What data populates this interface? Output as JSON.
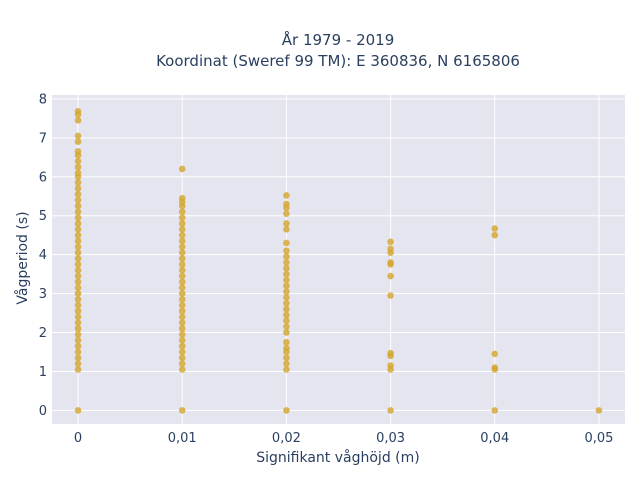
{
  "chart_data": {
    "type": "scatter",
    "title_lines": [
      "År 1979 - 2019",
      "Koordinat (Sweref 99 TM): E 360836, N 6165806"
    ],
    "xlabel": "Signifikant våghöjd (m)",
    "ylabel": "Vågperiod (s)",
    "xlim": [
      -0.0025,
      0.0525
    ],
    "ylim": [
      -0.35,
      8.1
    ],
    "x_ticks": [
      0,
      0.01,
      0.02,
      0.03,
      0.04,
      0.05
    ],
    "x_tick_labels": [
      "0",
      "0,01",
      "0,02",
      "0,03",
      "0,04",
      "0,05"
    ],
    "y_ticks": [
      0,
      1,
      2,
      3,
      4,
      5,
      6,
      7,
      8
    ],
    "y_tick_labels": [
      "0",
      "1",
      "2",
      "3",
      "4",
      "5",
      "6",
      "7",
      "8"
    ],
    "marker_color": "#d4a52a",
    "background_color": "#e5e5ef",
    "grid": true,
    "legend": "none",
    "series": [
      {
        "points": [
          [
            0,
            0
          ],
          [
            0,
            1.05
          ],
          [
            0,
            1.2
          ],
          [
            0,
            1.35
          ],
          [
            0,
            1.5
          ],
          [
            0,
            1.65
          ],
          [
            0,
            1.8
          ],
          [
            0,
            1.95
          ],
          [
            0,
            2.1
          ],
          [
            0,
            2.25
          ],
          [
            0,
            2.4
          ],
          [
            0,
            2.55
          ],
          [
            0,
            2.7
          ],
          [
            0,
            2.85
          ],
          [
            0,
            3.0
          ],
          [
            0,
            3.15
          ],
          [
            0,
            3.3
          ],
          [
            0,
            3.45
          ],
          [
            0,
            3.6
          ],
          [
            0,
            3.75
          ],
          [
            0,
            3.9
          ],
          [
            0,
            4.05
          ],
          [
            0,
            4.2
          ],
          [
            0,
            4.35
          ],
          [
            0,
            4.5
          ],
          [
            0,
            4.65
          ],
          [
            0,
            4.8
          ],
          [
            0,
            4.95
          ],
          [
            0,
            5.1
          ],
          [
            0,
            5.25
          ],
          [
            0,
            5.4
          ],
          [
            0,
            5.55
          ],
          [
            0,
            5.7
          ],
          [
            0,
            5.85
          ],
          [
            0,
            6.0
          ],
          [
            0,
            6.1
          ],
          [
            0,
            6.25
          ],
          [
            0,
            6.4
          ],
          [
            0,
            6.55
          ],
          [
            0,
            6.65
          ],
          [
            0,
            6.9
          ],
          [
            0,
            7.05
          ],
          [
            0,
            7.45
          ],
          [
            0,
            7.6
          ],
          [
            0,
            7.68
          ],
          [
            0.01,
            0
          ],
          [
            0.01,
            1.05
          ],
          [
            0.01,
            1.2
          ],
          [
            0.01,
            1.35
          ],
          [
            0.01,
            1.5
          ],
          [
            0.01,
            1.65
          ],
          [
            0.01,
            1.8
          ],
          [
            0.01,
            1.95
          ],
          [
            0.01,
            2.1
          ],
          [
            0.01,
            2.25
          ],
          [
            0.01,
            2.4
          ],
          [
            0.01,
            2.55
          ],
          [
            0.01,
            2.7
          ],
          [
            0.01,
            2.85
          ],
          [
            0.01,
            3.0
          ],
          [
            0.01,
            3.15
          ],
          [
            0.01,
            3.3
          ],
          [
            0.01,
            3.45
          ],
          [
            0.01,
            3.6
          ],
          [
            0.01,
            3.75
          ],
          [
            0.01,
            3.9
          ],
          [
            0.01,
            4.05
          ],
          [
            0.01,
            4.2
          ],
          [
            0.01,
            4.35
          ],
          [
            0.01,
            4.5
          ],
          [
            0.01,
            4.65
          ],
          [
            0.01,
            4.8
          ],
          [
            0.01,
            4.95
          ],
          [
            0.01,
            5.1
          ],
          [
            0.01,
            5.25
          ],
          [
            0.01,
            5.35
          ],
          [
            0.01,
            5.45
          ],
          [
            0.01,
            6.2
          ],
          [
            0.02,
            0
          ],
          [
            0.02,
            1.05
          ],
          [
            0.02,
            1.2
          ],
          [
            0.02,
            1.35
          ],
          [
            0.02,
            1.5
          ],
          [
            0.02,
            1.6
          ],
          [
            0.02,
            1.75
          ],
          [
            0.02,
            2.0
          ],
          [
            0.02,
            2.15
          ],
          [
            0.02,
            2.3
          ],
          [
            0.02,
            2.45
          ],
          [
            0.02,
            2.6
          ],
          [
            0.02,
            2.75
          ],
          [
            0.02,
            2.9
          ],
          [
            0.02,
            3.05
          ],
          [
            0.02,
            3.2
          ],
          [
            0.02,
            3.35
          ],
          [
            0.02,
            3.5
          ],
          [
            0.02,
            3.65
          ],
          [
            0.02,
            3.8
          ],
          [
            0.02,
            3.95
          ],
          [
            0.02,
            4.1
          ],
          [
            0.02,
            4.3
          ],
          [
            0.02,
            4.65
          ],
          [
            0.02,
            4.8
          ],
          [
            0.02,
            5.05
          ],
          [
            0.02,
            5.2
          ],
          [
            0.02,
            5.3
          ],
          [
            0.02,
            5.52
          ],
          [
            0.03,
            0
          ],
          [
            0.03,
            1.05
          ],
          [
            0.03,
            1.15
          ],
          [
            0.03,
            1.4
          ],
          [
            0.03,
            1.47
          ],
          [
            0.03,
            2.95
          ],
          [
            0.03,
            3.45
          ],
          [
            0.03,
            3.75
          ],
          [
            0.03,
            3.8
          ],
          [
            0.03,
            4.05
          ],
          [
            0.03,
            4.15
          ],
          [
            0.03,
            4.33
          ],
          [
            0.04,
            0
          ],
          [
            0.04,
            1.05
          ],
          [
            0.04,
            1.1
          ],
          [
            0.04,
            1.45
          ],
          [
            0.04,
            4.5
          ],
          [
            0.04,
            4.67
          ],
          [
            0.05,
            0
          ]
        ]
      }
    ]
  }
}
